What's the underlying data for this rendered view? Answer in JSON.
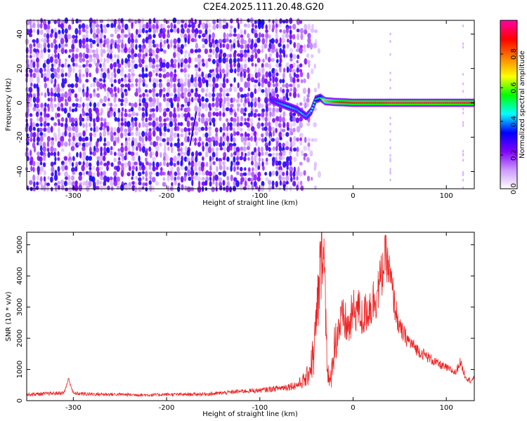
{
  "title": "C2E4.2025.111.20.48.G20",
  "chart_data": [
    {
      "type": "heatmap",
      "xlabel": "Height of straight line (km)",
      "ylabel": "Frequency (Hz)",
      "xlim": [
        -350,
        130
      ],
      "ylim": [
        -50,
        48
      ],
      "x_ticks": [
        "-300",
        "-200",
        "-100",
        "0",
        "100"
      ],
      "y_ticks": [
        "-40",
        "-20",
        "0",
        "20",
        "40"
      ],
      "colorbar": {
        "label": "Normalized spectral amplitude",
        "range": [
          0.0,
          1.0
        ],
        "ticks": [
          "0.0",
          "0.2",
          "0.4",
          "0.6",
          "0.8"
        ],
        "colors": [
          "#ffffff",
          "#cc99ff",
          "#8000ff",
          "#0000ff",
          "#00ffff",
          "#00ff00",
          "#ffff00",
          "#ff8000",
          "#ff0000",
          "#ff00aa"
        ]
      },
      "noise_region_x": [
        -350,
        -65
      ],
      "signal_track": {
        "x": [
          -88,
          -80,
          -70,
          -60,
          -55,
          -50,
          -45,
          -40,
          -35,
          -30,
          -20,
          -10,
          0,
          20,
          40,
          60,
          80,
          100,
          130
        ],
        "frequency": [
          2,
          0,
          -2,
          -4,
          -6,
          -8,
          -5,
          2,
          3,
          1,
          0.5,
          0.3,
          0,
          0,
          0,
          0,
          0,
          0,
          0
        ],
        "amplitude": [
          0.35,
          0.4,
          0.45,
          0.4,
          0.45,
          0.4,
          0.45,
          0.5,
          0.55,
          0.75,
          0.85,
          0.9,
          0.9,
          0.92,
          0.95,
          0.95,
          0.95,
          0.95,
          0.93
        ]
      }
    },
    {
      "type": "line",
      "xlabel": "Height of straight line (km)",
      "ylabel": "SNR (10 * v/v)",
      "xlim": [
        -350,
        130
      ],
      "ylim": [
        0,
        5400
      ],
      "x_ticks": [
        "-300",
        "-200",
        "-100",
        "0",
        "100"
      ],
      "y_ticks": [
        "0",
        "1000",
        "2000",
        "3000",
        "4000",
        "5000"
      ],
      "series": [
        {
          "color": "#ee2222",
          "x": [
            -350,
            -330,
            -310,
            -305,
            -300,
            -280,
            -250,
            -220,
            -200,
            -180,
            -150,
            -120,
            -100,
            -80,
            -60,
            -50,
            -42,
            -38,
            -35,
            -32,
            -30,
            -27,
            -25,
            -20,
            -15,
            -10,
            -5,
            0,
            5,
            10,
            15,
            20,
            25,
            30,
            35,
            40,
            45,
            50,
            60,
            70,
            80,
            90,
            100,
            110,
            115,
            120,
            125,
            130
          ],
          "y": [
            200,
            220,
            250,
            700,
            230,
            210,
            200,
            180,
            200,
            200,
            220,
            300,
            330,
            400,
            500,
            700,
            1500,
            3000,
            4200,
            5300,
            3500,
            900,
            400,
            1800,
            2400,
            2600,
            2300,
            2800,
            3000,
            2600,
            2900,
            3100,
            3400,
            3900,
            4700,
            3900,
            3000,
            2300,
            1900,
            1600,
            1400,
            1200,
            1050,
            900,
            1250,
            800,
            650,
            700
          ],
          "noise_amplitude": [
            60,
            60,
            60,
            60,
            60,
            60,
            50,
            50,
            50,
            50,
            60,
            70,
            80,
            100,
            150,
            300,
            800,
            1200,
            1500,
            1200,
            1400,
            600,
            300,
            700,
            800,
            700,
            700,
            800,
            700,
            700,
            700,
            800,
            800,
            800,
            700,
            700,
            500,
            350,
            250,
            200,
            180,
            150,
            130,
            120,
            150,
            110,
            100,
            100
          ]
        }
      ]
    }
  ]
}
